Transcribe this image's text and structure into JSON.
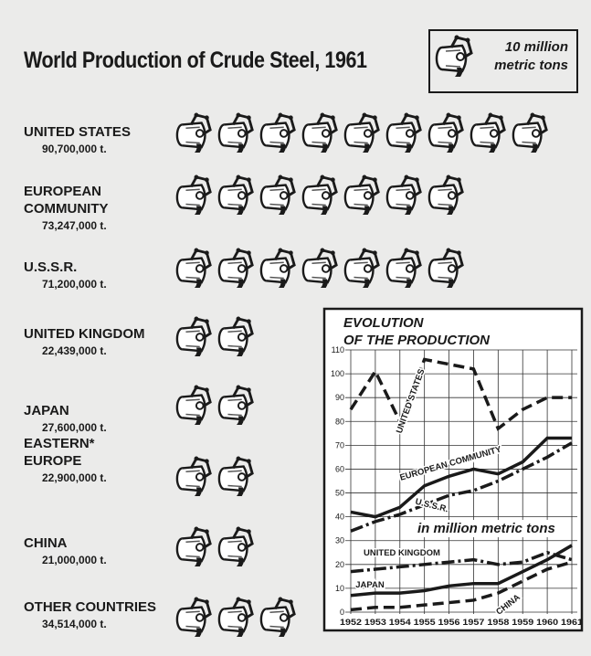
{
  "chart_data": [
    {
      "type": "pictograph",
      "title": "World Production of Crude Steel, 1961",
      "legend_label": "10 million\nmetric tons",
      "unit": 10000000,
      "categories": [
        "UNITED STATES",
        "EUROPEAN\nCOMMUNITY",
        "U.S.S.R.",
        "UNITED KINGDOM",
        "JAPAN",
        "EASTERN*\nEUROPE",
        "CHINA",
        "OTHER COUNTRIES"
      ],
      "values": [
        90700000,
        73247000,
        71200000,
        22439000,
        27600000,
        22900000,
        21000000,
        34514000
      ],
      "value_labels": [
        "90,700,000 t.",
        "73,247,000 t.",
        "71,200,000 t.",
        "22,439,000 t.",
        "27,600,000 t.",
        "22,900,000 t.",
        "21,000,000 t.",
        "34,514,000 t."
      ],
      "color": "#1a1a1a"
    },
    {
      "type": "line",
      "title": "EVOLUTION\nOF THE PRODUCTION",
      "annotation": "in million metric tons",
      "x": [
        1952,
        1953,
        1954,
        1955,
        1956,
        1957,
        1958,
        1959,
        1960,
        1961
      ],
      "xlim": [
        1952,
        1961
      ],
      "xticks": [
        1952,
        1953,
        1954,
        1955,
        1956,
        1957,
        1958,
        1959,
        1960,
        1961
      ],
      "ylim": [
        0,
        110
      ],
      "yticks": [
        0,
        10,
        20,
        30,
        40,
        50,
        60,
        70,
        80,
        90,
        100,
        110
      ],
      "grid": true,
      "series": [
        {
          "name": "UNITED STATES",
          "color": "#1a1a1a",
          "dash": "dashed",
          "values": [
            85,
            101,
            80,
            106,
            104,
            102,
            77,
            85,
            90,
            90
          ]
        },
        {
          "name": "EUROPEAN COMMUNITY",
          "color": "#1a1a1a",
          "dash": "solid",
          "values": [
            42,
            40,
            44,
            53,
            57,
            60,
            58,
            63,
            73,
            73
          ]
        },
        {
          "name": "U.S.S.R.",
          "color": "#1a1a1a",
          "dash": "dashdot",
          "values": [
            34,
            38,
            41,
            45,
            49,
            51,
            55,
            60,
            65,
            71
          ]
        },
        {
          "name": "UNITED KINGDOM",
          "color": "#1a1a1a",
          "dash": "dashdot",
          "values": [
            17,
            18,
            19,
            20,
            21,
            22,
            20,
            21,
            25,
            22
          ]
        },
        {
          "name": "JAPAN",
          "color": "#1a1a1a",
          "dash": "solid",
          "values": [
            7,
            8,
            8,
            9,
            11,
            12,
            12,
            17,
            22,
            28
          ]
        },
        {
          "name": "CHINA",
          "color": "#1a1a1a",
          "dash": "dashed",
          "values": [
            1,
            2,
            2,
            3,
            4,
            5,
            8,
            13,
            18,
            21
          ]
        }
      ]
    }
  ]
}
